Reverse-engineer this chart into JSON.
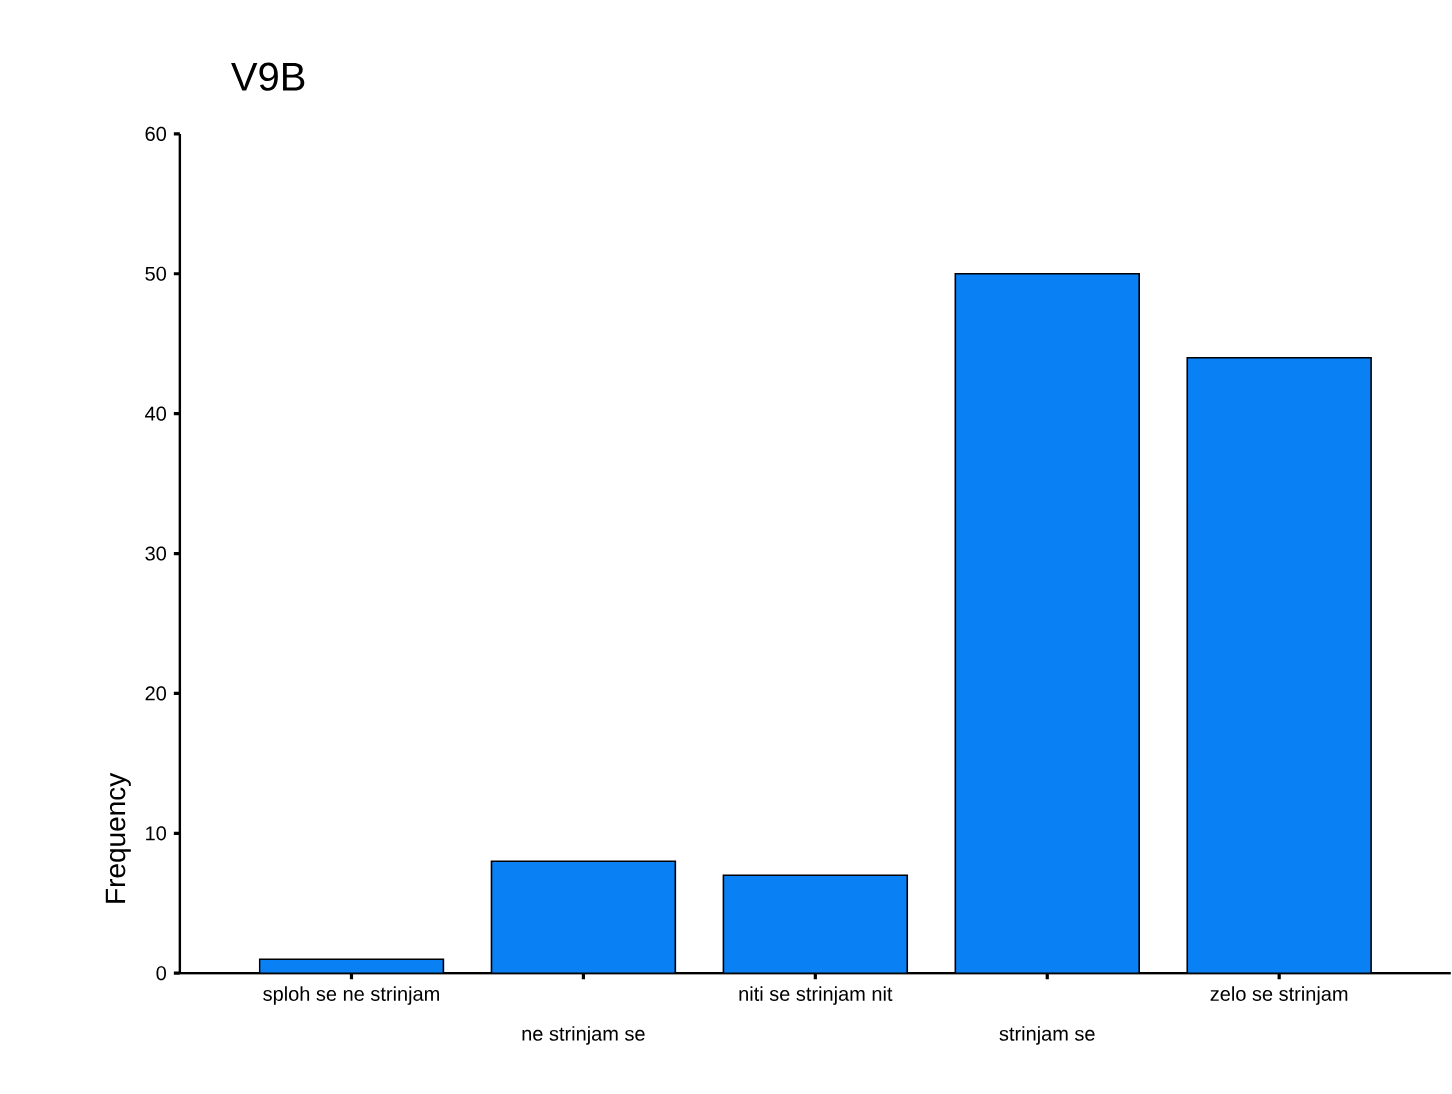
{
  "chart_data": {
    "type": "bar",
    "title": "V9B",
    "ylabel": "Frequency",
    "categories": [
      "sploh se ne strinjam",
      "ne strinjam se",
      "niti se strinjam nit",
      "strinjam se",
      "zelo se strinjam"
    ],
    "values": [
      1,
      8,
      7,
      50,
      44
    ],
    "color": "#0a80f5",
    "ylim": [
      0,
      60
    ],
    "yticks": [
      0,
      10,
      20,
      30,
      40,
      50,
      60
    ],
    "grid": false
  }
}
